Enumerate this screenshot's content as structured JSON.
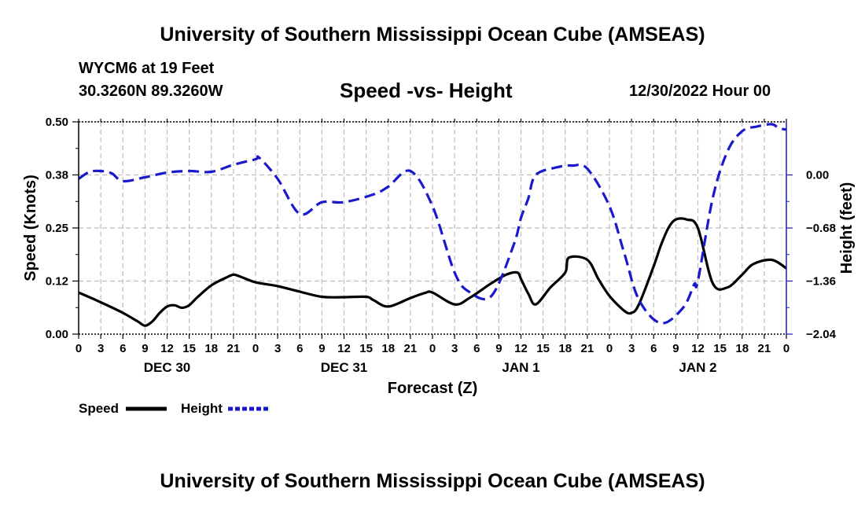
{
  "header": {
    "title": "University of Southern Mississippi Ocean Cube (AMSEAS)",
    "station": "WYCM6 at 19 Feet",
    "coords": "30.3260N  89.3260W",
    "subtitle": "Speed -vs- Height",
    "datetime": "12/30/2022 Hour 00"
  },
  "footer": {
    "title": "University of Southern Mississippi Ocean Cube (AMSEAS)"
  },
  "chart_data": {
    "type": "line",
    "xlabel": "Forecast (Z)",
    "ylabel_left": "Speed (Knots)",
    "ylabel_right": "Height (feet)",
    "xlim": [
      0,
      96
    ],
    "ylim_left": [
      0,
      0.5
    ],
    "ylim_right": [
      -2.04,
      0.68
    ],
    "left_ticks": [
      "0.00",
      "0.12",
      "0.25",
      "0.38",
      "0.50"
    ],
    "left_tick_values": [
      0,
      0.125,
      0.25,
      0.375,
      0.5
    ],
    "right_ticks": [
      "0.00",
      "−0.68",
      "−1.36",
      "−2.04"
    ],
    "right_tick_values": [
      0,
      -0.68,
      -1.36,
      -2.04
    ],
    "x_tick_labels": [
      "0",
      "3",
      "6",
      "9",
      "12",
      "15",
      "18",
      "21",
      "0",
      "3",
      "6",
      "9",
      "12",
      "15",
      "18",
      "21",
      "0",
      "3",
      "6",
      "9",
      "12",
      "15",
      "18",
      "21",
      "0",
      "3",
      "6",
      "9",
      "12",
      "15",
      "18",
      "21",
      "0"
    ],
    "day_labels": [
      {
        "label": "DEC 30",
        "hour": 12
      },
      {
        "label": "DEC 31",
        "hour": 36
      },
      {
        "label": "JAN 1",
        "hour": 60
      },
      {
        "label": "JAN 2",
        "hour": 84
      }
    ],
    "grid": true,
    "legend": [
      {
        "name": "Speed",
        "color": "#000000",
        "dash": "solid"
      },
      {
        "name": "Height",
        "color": "#1a1acc",
        "dash": "dashed"
      }
    ],
    "series": [
      {
        "name": "Speed",
        "axis": "left",
        "color": "#000000",
        "x": [
          0,
          3,
          6,
          8,
          9,
          10,
          11,
          12,
          13,
          14,
          15,
          16,
          18,
          20,
          21,
          22,
          24,
          27,
          30,
          33,
          36,
          39,
          40,
          42,
          45,
          47,
          48,
          51,
          53,
          56,
          58,
          59.5,
          60,
          61,
          62,
          64,
          66,
          66.5,
          69,
          70.5,
          72,
          74,
          75,
          76,
          78,
          79,
          80,
          81,
          82.5,
          84,
          86,
          88,
          90,
          91.5,
          94,
          96
        ],
        "values": [
          0.098,
          0.075,
          0.05,
          0.03,
          0.02,
          0.03,
          0.05,
          0.065,
          0.068,
          0.062,
          0.068,
          0.085,
          0.115,
          0.133,
          0.14,
          0.135,
          0.122,
          0.113,
          0.1,
          0.088,
          0.087,
          0.088,
          0.08,
          0.065,
          0.085,
          0.097,
          0.098,
          0.07,
          0.085,
          0.12,
          0.14,
          0.145,
          0.13,
          0.095,
          0.07,
          0.11,
          0.145,
          0.18,
          0.175,
          0.13,
          0.09,
          0.055,
          0.05,
          0.07,
          0.16,
          0.21,
          0.25,
          0.27,
          0.27,
          0.25,
          0.12,
          0.11,
          0.14,
          0.165,
          0.175,
          0.155
        ]
      },
      {
        "name": "Height",
        "axis": "right",
        "color": "#1a1acc",
        "x": [
          0,
          1.5,
          3,
          4.5,
          6,
          9,
          12,
          15,
          18,
          21,
          24,
          24.5,
          27,
          30,
          33,
          36,
          40,
          42,
          45,
          48,
          51,
          53,
          56,
          59,
          60,
          61,
          62,
          65,
          67,
          69,
          72,
          74,
          76,
          79,
          82,
          83.5,
          84,
          86,
          88,
          90,
          92,
          94,
          95,
          96
        ],
        "values": [
          -0.05,
          0.04,
          0.05,
          0.02,
          -0.08,
          -0.03,
          0.03,
          0.05,
          0.04,
          0.13,
          0.2,
          0.22,
          -0.05,
          -0.5,
          -0.35,
          -0.35,
          -0.25,
          -0.15,
          0.05,
          -0.4,
          -1.25,
          -1.5,
          -1.55,
          -0.9,
          -0.55,
          -0.3,
          0.0,
          0.1,
          0.12,
          0.08,
          -0.4,
          -1.0,
          -1.6,
          -1.9,
          -1.7,
          -1.4,
          -1.36,
          -0.3,
          0.3,
          0.56,
          0.62,
          0.65,
          0.6,
          0.58
        ]
      }
    ]
  }
}
